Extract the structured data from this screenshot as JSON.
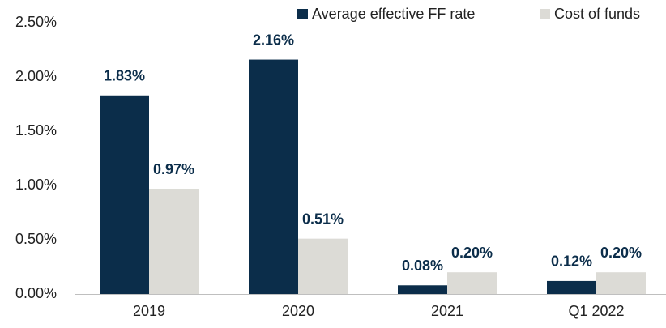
{
  "chart_data": {
    "type": "bar",
    "categories": [
      "2019",
      "2020",
      "2021",
      "Q1 2022"
    ],
    "series": [
      {
        "name": "Average effective FF rate",
        "color": "#0b2d4a",
        "values": [
          1.83,
          2.16,
          0.08,
          0.12
        ],
        "value_labels": [
          "1.83%",
          "2.16%",
          "0.08%",
          "0.12%"
        ]
      },
      {
        "name": "Cost of funds",
        "color": "#dcdbd6",
        "values": [
          0.97,
          0.51,
          0.2,
          0.2
        ],
        "value_labels": [
          "0.97%",
          "0.51%",
          "0.20%",
          "0.20%"
        ]
      }
    ],
    "ylim": [
      0,
      2.5
    ],
    "yticks": [
      {
        "value": 0,
        "label": "0.00%"
      },
      {
        "value": 0.5,
        "label": "0.50%"
      },
      {
        "value": 1,
        "label": "1.00%"
      },
      {
        "value": 1.5,
        "label": "1.50%"
      },
      {
        "value": 2,
        "label": "2.00%"
      },
      {
        "value": 2.5,
        "label": "2.50%"
      }
    ],
    "grid": false,
    "legend": "top-right"
  }
}
